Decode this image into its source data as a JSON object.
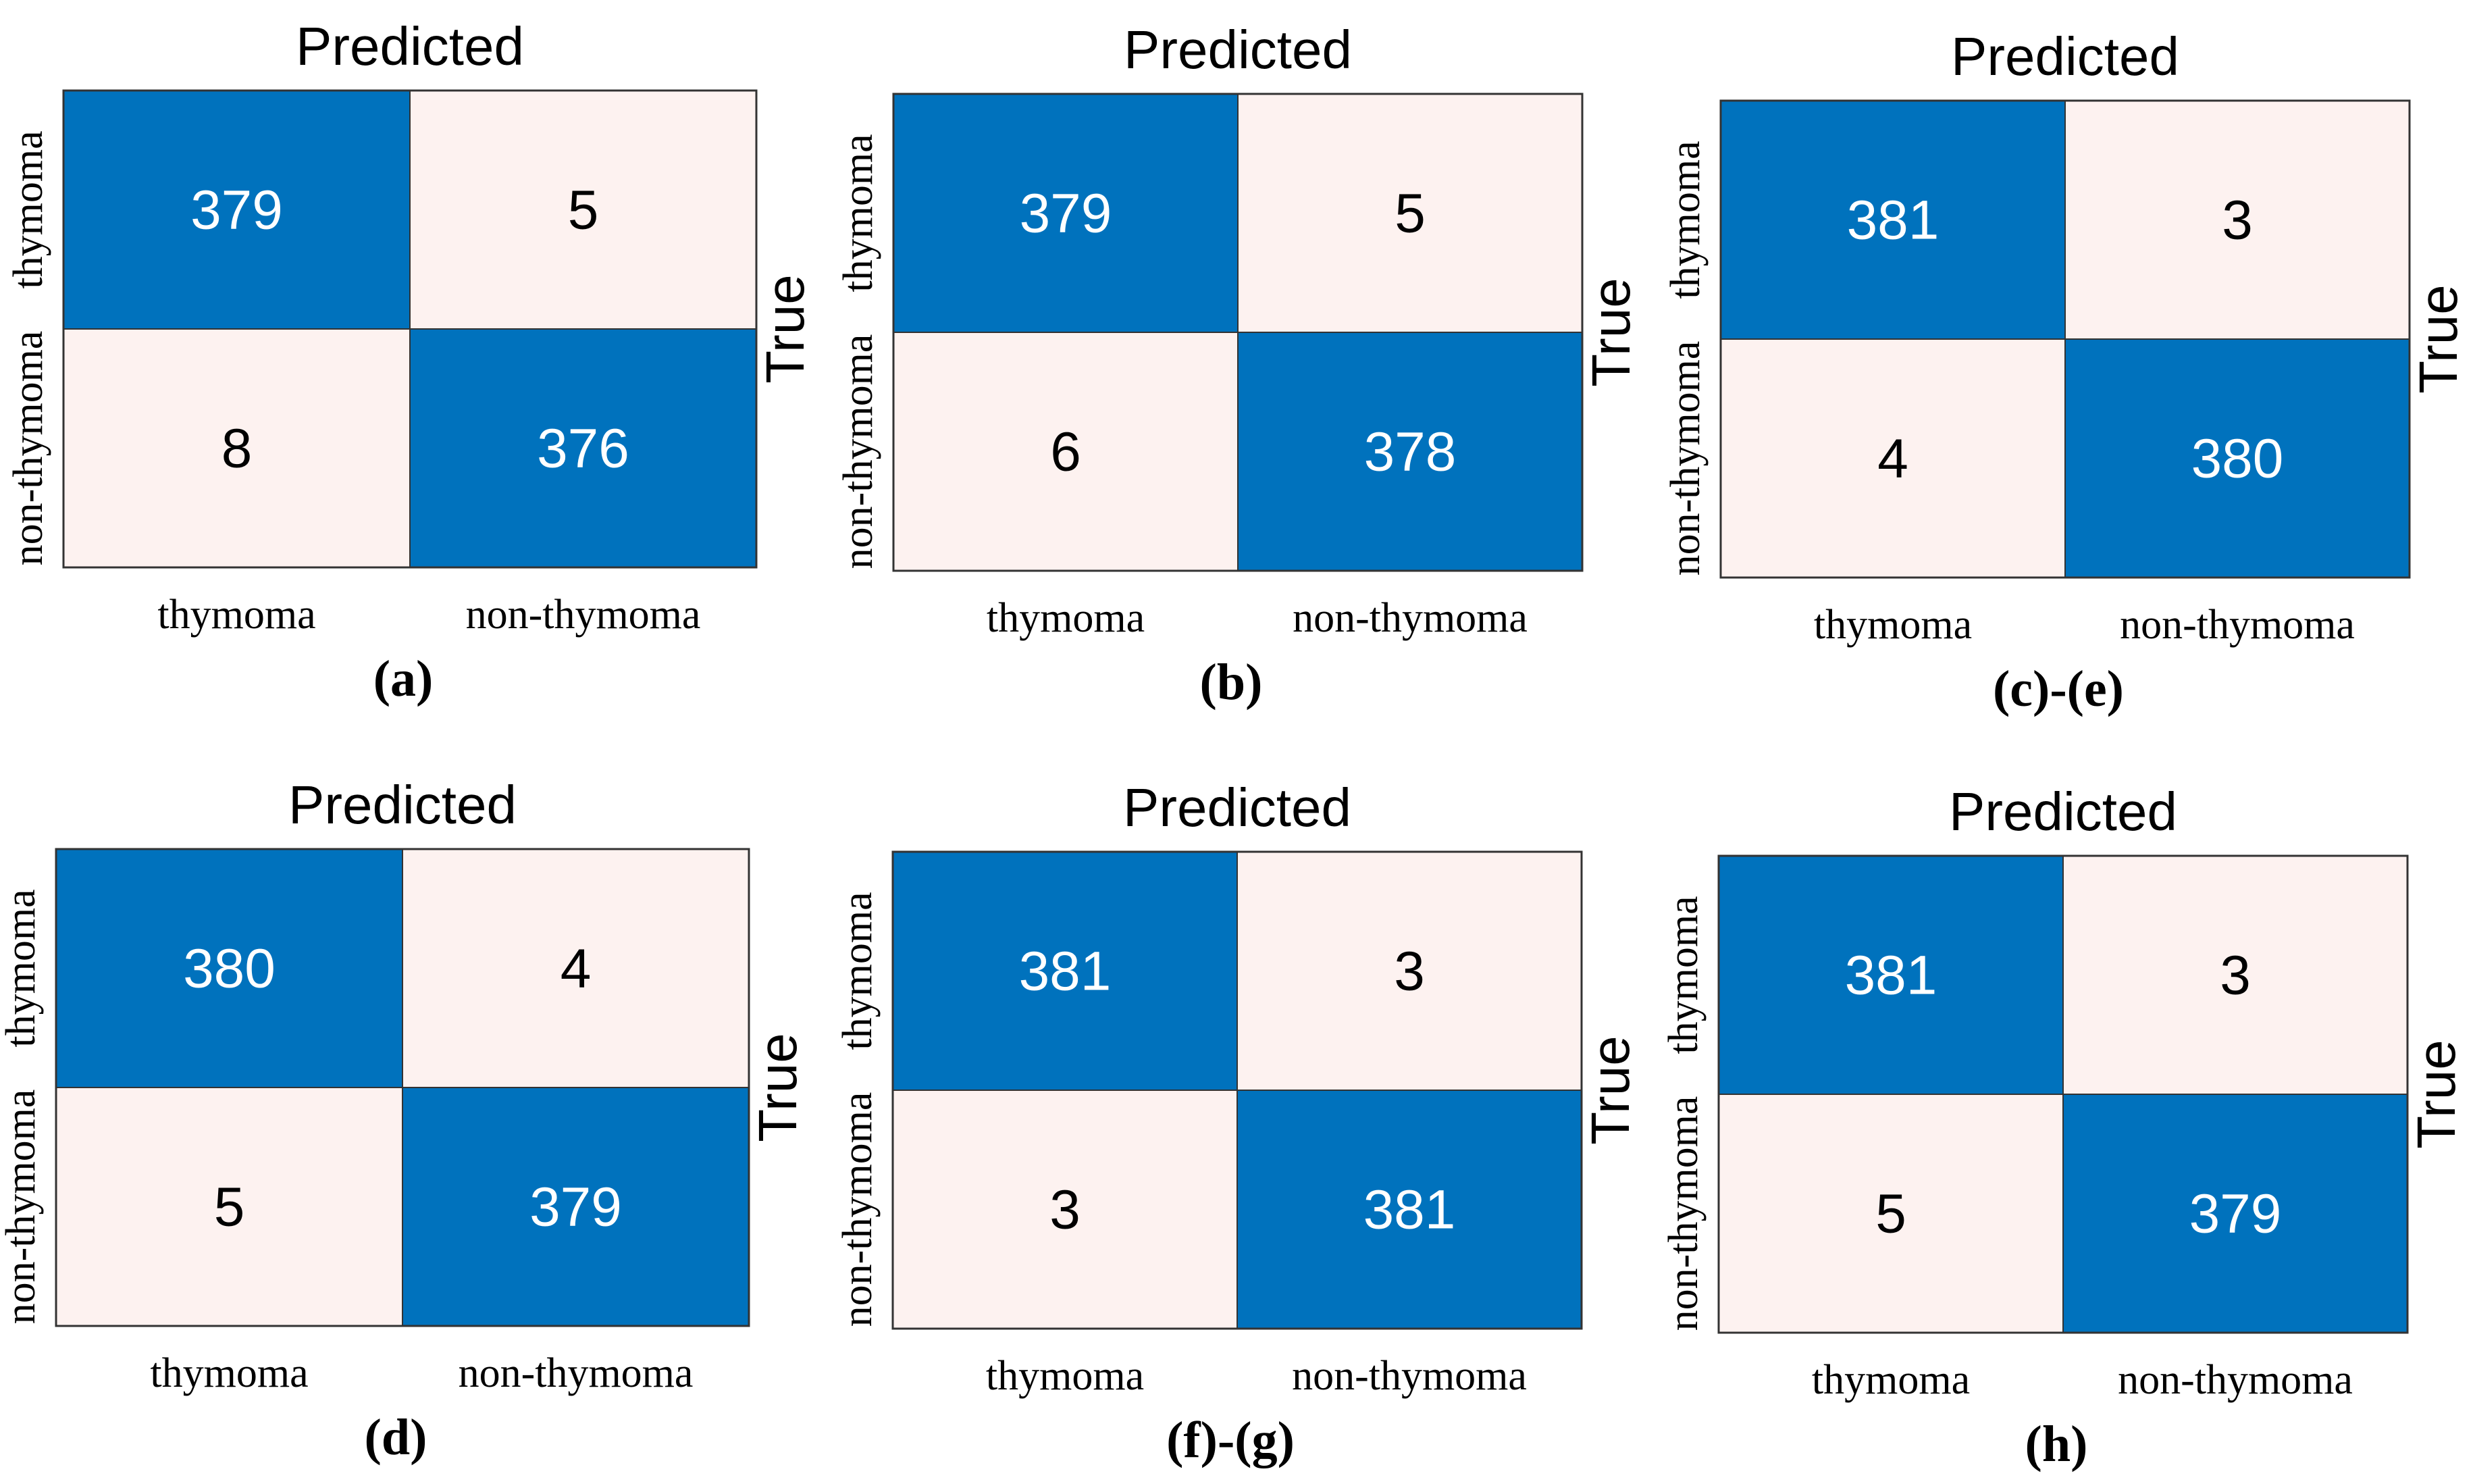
{
  "chart_data": [
    {
      "type": "heatmap",
      "panel": "(a)",
      "title": "Predicted",
      "ylabel": "True",
      "x_categories": [
        "thymoma",
        "non-thymoma"
      ],
      "y_categories": [
        "thymoma",
        "non-thymoma"
      ],
      "values": [
        [
          379,
          5
        ],
        [
          8,
          376
        ]
      ]
    },
    {
      "type": "heatmap",
      "panel": "(b)",
      "title": "Predicted",
      "ylabel": "True",
      "x_categories": [
        "thymoma",
        "non-thymoma"
      ],
      "y_categories": [
        "thymoma",
        "non-thymoma"
      ],
      "values": [
        [
          379,
          5
        ],
        [
          6,
          378
        ]
      ]
    },
    {
      "type": "heatmap",
      "panel": "(c)-(e)",
      "title": "Predicted",
      "ylabel": "True",
      "x_categories": [
        "thymoma",
        "non-thymoma"
      ],
      "y_categories": [
        "thymoma",
        "non-thymoma"
      ],
      "values": [
        [
          381,
          3
        ],
        [
          4,
          380
        ]
      ]
    },
    {
      "type": "heatmap",
      "panel": "(d)",
      "title": "Predicted",
      "ylabel": "True",
      "x_categories": [
        "thymoma",
        "non-thymoma"
      ],
      "y_categories": [
        "thymoma",
        "non-thymoma"
      ],
      "values": [
        [
          380,
          4
        ],
        [
          5,
          379
        ]
      ]
    },
    {
      "type": "heatmap",
      "panel": "(f)-(g)",
      "title": "Predicted",
      "ylabel": "True",
      "x_categories": [
        "thymoma",
        "non-thymoma"
      ],
      "y_categories": [
        "thymoma",
        "non-thymoma"
      ],
      "values": [
        [
          381,
          3
        ],
        [
          3,
          381
        ]
      ]
    },
    {
      "type": "heatmap",
      "panel": "(h)",
      "title": "Predicted",
      "ylabel": "True",
      "x_categories": [
        "thymoma",
        "non-thymoma"
      ],
      "y_categories": [
        "thymoma",
        "non-thymoma"
      ],
      "values": [
        [
          381,
          3
        ],
        [
          5,
          379
        ]
      ]
    }
  ],
  "colors": {
    "high": "#0072BD",
    "low": "#FDF2F0",
    "high_text": "#ffffff",
    "low_text": "#000000",
    "border": "#333333"
  }
}
